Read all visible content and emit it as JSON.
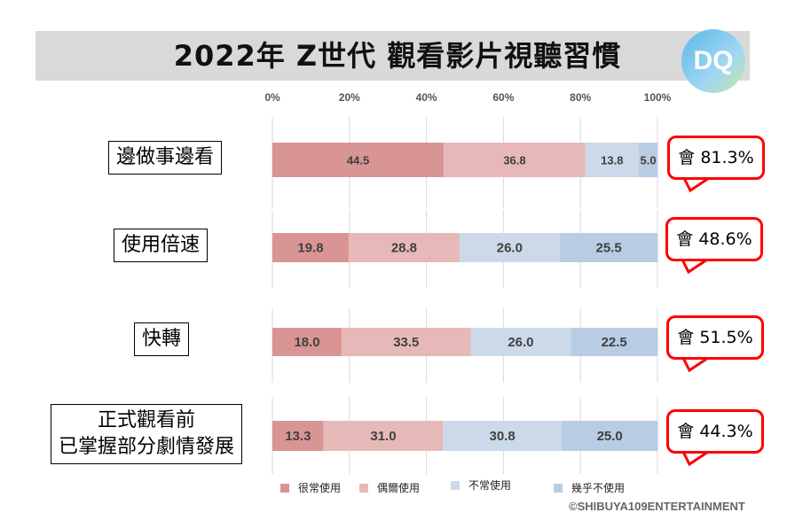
{
  "header": {
    "title": "2022年 Z世代 觀看影片視聽習慣",
    "logo": "DQ"
  },
  "chart_data": {
    "type": "bar",
    "orientation": "horizontal-stacked-100",
    "title": "2022年 Z世代 觀看影片視聽習慣",
    "categories": [
      "邊做事邊看",
      "使用倍速",
      "快轉",
      "正式觀看前\n已掌握部分劇情發展"
    ],
    "series": [
      {
        "name": "很常使用",
        "color": "#D99594",
        "values": [
          44.5,
          19.8,
          18.0,
          13.3
        ]
      },
      {
        "name": "偶爾使用",
        "color": "#E6B9B8",
        "values": [
          36.8,
          28.8,
          33.5,
          31.0
        ]
      },
      {
        "name": "不常使用",
        "color": "#CCD9E8",
        "values": [
          13.8,
          26.0,
          26.0,
          30.8
        ]
      },
      {
        "name": "幾乎不使用",
        "color": "#B8CCE4",
        "values": [
          5.0,
          25.5,
          22.5,
          25.0
        ]
      }
    ],
    "xlim": [
      0,
      100
    ],
    "xticks": [
      "0%",
      "20%",
      "40%",
      "60%",
      "80%",
      "100%"
    ],
    "grid": true,
    "legend": "bottom",
    "annotations": [
      "會 81.3%",
      "會 48.6%",
      "會 51.5%",
      "會 44.3%"
    ]
  },
  "copyright": "©SHIBUYA109ENTERTAINMENT"
}
